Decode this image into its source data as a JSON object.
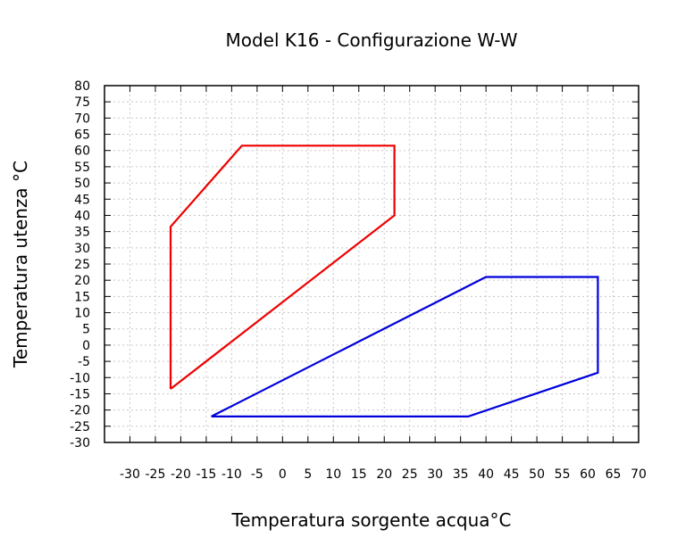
{
  "chart_data": {
    "type": "line",
    "title": "Model K16 - Configurazione W-W",
    "xlabel": "Temperatura sorgente acqua°C",
    "ylabel": "Temperatura utenza °C",
    "xlim": [
      -35,
      70
    ],
    "ylim": [
      -30,
      80
    ],
    "xticks": [
      -30,
      -25,
      -20,
      -15,
      -10,
      -5,
      0,
      5,
      10,
      15,
      20,
      25,
      30,
      35,
      40,
      45,
      50,
      55,
      60,
      65,
      70
    ],
    "yticks": [
      -30,
      -25,
      -20,
      -15,
      -10,
      -5,
      0,
      5,
      10,
      15,
      20,
      25,
      30,
      35,
      40,
      45,
      50,
      55,
      60,
      65,
      70,
      75,
      80
    ],
    "grid": true,
    "series": [
      {
        "color": "#ee0000",
        "points": [
          [
            -22,
            -13.5
          ],
          [
            -22,
            36.5
          ],
          [
            -8,
            61.5
          ],
          [
            22,
            61.5
          ],
          [
            22,
            40
          ],
          [
            -22,
            -13.5
          ]
        ]
      },
      {
        "color": "#0000dd",
        "points": [
          [
            -14,
            -22
          ],
          [
            36.5,
            -22
          ],
          [
            62,
            -8.5
          ],
          [
            62,
            21
          ],
          [
            40,
            21
          ],
          [
            -14,
            -22
          ]
        ]
      }
    ]
  }
}
